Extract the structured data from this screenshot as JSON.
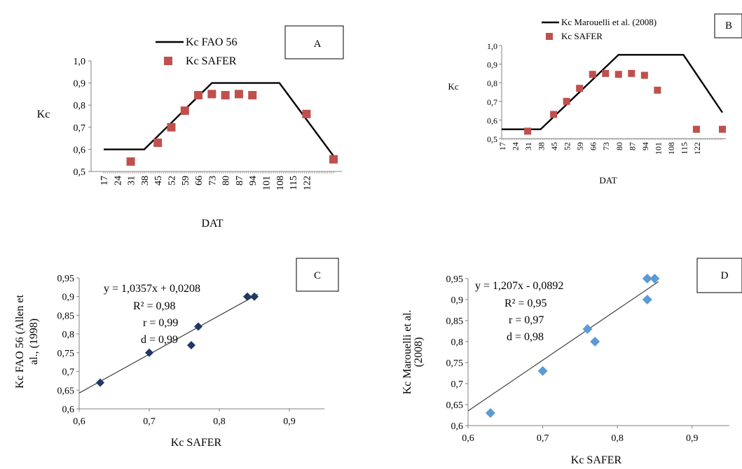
{
  "chart_data": [
    {
      "id": "A",
      "type": "line",
      "panel_label": "A",
      "xlabel": "DAT",
      "ylabel": "Kc",
      "ylim": [
        0.5,
        1.0
      ],
      "y_ticks": [
        "0,5",
        "0,6",
        "0,7",
        "0,8",
        "0,9",
        "1,0"
      ],
      "x_ticks": [
        "17",
        "24",
        "31",
        "38",
        "45",
        "52",
        "59",
        "66",
        "73",
        "80",
        "87",
        "94",
        "101",
        "108",
        "115",
        "122"
      ],
      "xlim": [
        17,
        136
      ],
      "grid": false,
      "legend": "top",
      "series": [
        {
          "name": "Kc FAO 56",
          "kind": "line",
          "color": "#000000",
          "x": [
            17,
            38,
            73,
            108,
            136
          ],
          "y": [
            0.6,
            0.6,
            0.9,
            0.9,
            0.57
          ]
        },
        {
          "name": "Kc SAFER",
          "kind": "scatter",
          "color": "#c0504d",
          "x": [
            31,
            45,
            52,
            59,
            66,
            73,
            80,
            87,
            94,
            122,
            136
          ],
          "y": [
            0.545,
            0.63,
            0.7,
            0.775,
            0.845,
            0.85,
            0.845,
            0.85,
            0.845,
            0.76,
            0.555
          ]
        }
      ]
    },
    {
      "id": "B",
      "type": "line",
      "panel_label": "B",
      "xlabel": "DAT",
      "ylabel": "Kc",
      "ylim": [
        0.5,
        1.0
      ],
      "y_ticks": [
        "0,5",
        "0,6",
        "0,7",
        "0,8",
        "0,9",
        "1,0"
      ],
      "x_ticks": [
        "17",
        "24",
        "31",
        "38",
        "45",
        "52",
        "59",
        "66",
        "73",
        "80",
        "87",
        "94",
        "101",
        "108",
        "115",
        "122"
      ],
      "xlim": [
        17,
        136
      ],
      "grid": false,
      "legend": "top",
      "series": [
        {
          "name": "Kc Marouelli et al. (2008)",
          "kind": "line",
          "color": "#000000",
          "x": [
            17,
            38,
            80,
            115,
            136
          ],
          "y": [
            0.55,
            0.55,
            0.95,
            0.95,
            0.64
          ]
        },
        {
          "name": "Kc SAFER",
          "kind": "scatter",
          "color": "#c0504d",
          "x": [
            31,
            45,
            52,
            59,
            66,
            73,
            80,
            87,
            94,
            101,
            122,
            136
          ],
          "y": [
            0.54,
            0.63,
            0.7,
            0.77,
            0.845,
            0.85,
            0.845,
            0.85,
            0.84,
            0.76,
            0.55,
            0.55
          ]
        }
      ]
    },
    {
      "id": "C",
      "type": "scatter",
      "panel_label": "C",
      "xlabel": "Kc SAFER",
      "ylabel": "Kc FAO 56 (Allen et al., (1998)",
      "xlim": [
        0.6,
        0.95
      ],
      "ylim": [
        0.6,
        0.95
      ],
      "x_ticks": [
        "0,6",
        "0,7",
        "0,8",
        "0,9"
      ],
      "y_ticks": [
        "0,6",
        "0,65",
        "0,7",
        "0,75",
        "0,8",
        "0,85",
        "0,9",
        "0,95"
      ],
      "equation": "y = 1,0357x  + 0,0208",
      "stats": [
        "R² = 0,98",
        "r = 0,99",
        "d = 0,99"
      ],
      "grid": false,
      "points_color": "#1f3864",
      "x": [
        0.63,
        0.7,
        0.76,
        0.77,
        0.84,
        0.85
      ],
      "y": [
        0.67,
        0.75,
        0.77,
        0.82,
        0.9,
        0.9
      ],
      "trend": {
        "slope": 1.0357,
        "intercept": 0.0208
      }
    },
    {
      "id": "D",
      "type": "scatter",
      "panel_label": "D",
      "xlabel": "Kc SAFER",
      "ylabel": "Kc Marouelli et al. (2008)",
      "xlim": [
        0.6,
        0.95
      ],
      "ylim": [
        0.6,
        0.95
      ],
      "x_ticks": [
        "0,6",
        "0,7",
        "0,8",
        "0,9"
      ],
      "y_ticks": [
        "0,6",
        "0,65",
        "0,7",
        "0,75",
        "0,8",
        "0,85",
        "0,9",
        "0,95"
      ],
      "equation": "y = 1,207x  - 0,0892",
      "stats": [
        "R² = 0,95",
        "r = 0,97",
        "d = 0,98"
      ],
      "grid": false,
      "points_color": "#5b9bd5",
      "x": [
        0.63,
        0.7,
        0.76,
        0.77,
        0.84,
        0.84,
        0.85
      ],
      "y": [
        0.63,
        0.73,
        0.83,
        0.8,
        0.9,
        0.95,
        0.95
      ],
      "trend": {
        "slope": 1.207,
        "intercept": -0.0892
      }
    }
  ]
}
